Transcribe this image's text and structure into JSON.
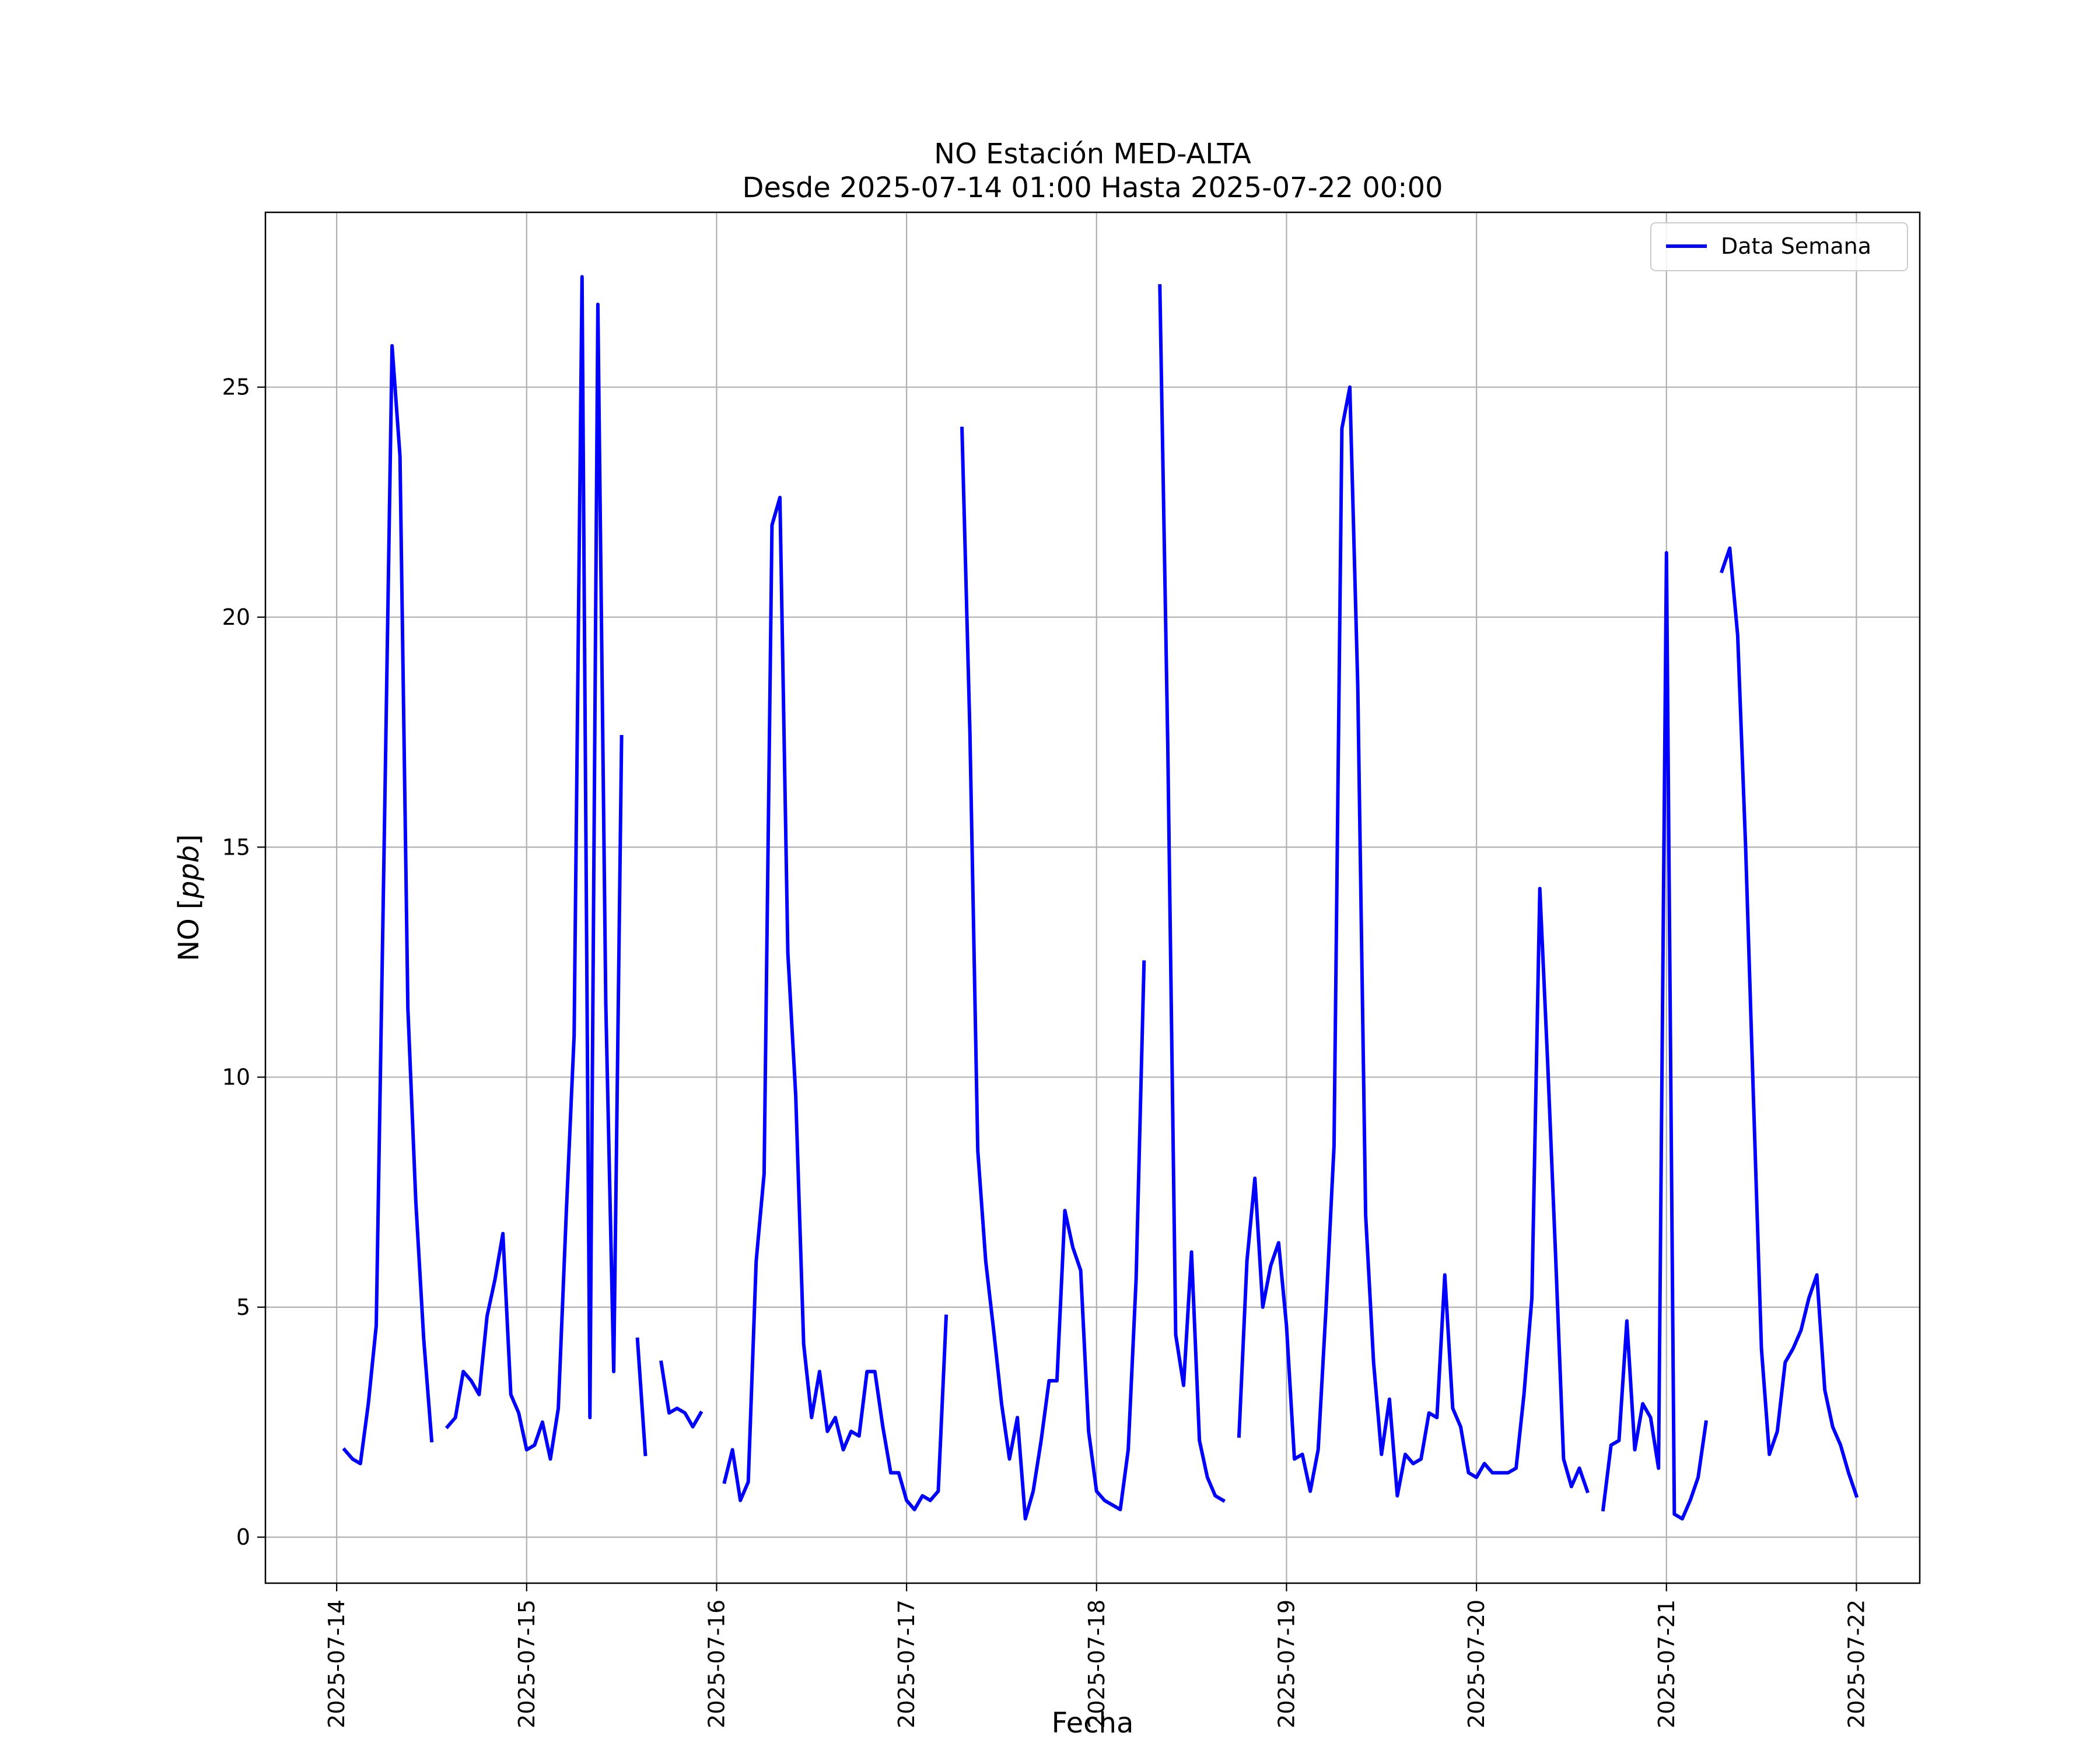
{
  "chart_data": {
    "type": "line",
    "title": "NO Estación MED-ALTA",
    "subtitle": "Desde 2025-07-14 01:00 Hasta 2025-07-22 00:00",
    "xlabel": "Fecha",
    "ylabel": "NO [ppb]",
    "ylabel_parts": {
      "prefix": "NO [",
      "unit": "ppb",
      "suffix": "]"
    },
    "xlim": [
      "2025-07-13 15:00",
      "2025-07-22 08:00"
    ],
    "ylim": [
      -1,
      28.8
    ],
    "x_ticks": [
      "2025-07-14",
      "2025-07-15",
      "2025-07-16",
      "2025-07-17",
      "2025-07-18",
      "2025-07-19",
      "2025-07-20",
      "2025-07-21",
      "2025-07-22"
    ],
    "y_ticks": [
      0,
      5,
      10,
      15,
      20,
      25
    ],
    "grid": true,
    "legend_position": "top-right",
    "series": [
      {
        "name": "Data Semana",
        "color": "#0000ff",
        "points": [
          [
            "2025-07-14 01:00",
            1.9
          ],
          [
            "2025-07-14 02:00",
            1.7
          ],
          [
            "2025-07-14 03:00",
            1.6
          ],
          [
            "2025-07-14 04:00",
            2.9
          ],
          [
            "2025-07-14 05:00",
            4.6
          ],
          [
            "2025-07-14 06:00",
            15
          ],
          [
            "2025-07-14 07:00",
            25.9
          ],
          [
            "2025-07-14 08:00",
            23.5
          ],
          [
            "2025-07-14 09:00",
            11.5
          ],
          [
            "2025-07-14 10:00",
            7.3
          ],
          [
            "2025-07-14 11:00",
            4.3
          ],
          [
            "2025-07-14 12:00",
            2.1
          ],
          [
            "2025-07-14 13:00",
            null
          ],
          [
            "2025-07-14 14:00",
            2.4
          ],
          [
            "2025-07-14 15:00",
            2.6
          ],
          [
            "2025-07-14 16:00",
            3.6
          ],
          [
            "2025-07-14 17:00",
            3.4
          ],
          [
            "2025-07-14 18:00",
            3.1
          ],
          [
            "2025-07-14 19:00",
            4.8
          ],
          [
            "2025-07-14 20:00",
            5.6
          ],
          [
            "2025-07-14 21:00",
            6.6
          ],
          [
            "2025-07-14 22:00",
            3.1
          ],
          [
            "2025-07-14 23:00",
            2.7
          ],
          [
            "2025-07-15 00:00",
            1.9
          ],
          [
            "2025-07-15 01:00",
            2
          ],
          [
            "2025-07-15 02:00",
            2.5
          ],
          [
            "2025-07-15 03:00",
            1.7
          ],
          [
            "2025-07-15 04:00",
            2.8
          ],
          [
            "2025-07-15 05:00",
            7
          ],
          [
            "2025-07-15 06:00",
            10.9
          ],
          [
            "2025-07-15 07:00",
            27.4
          ],
          [
            "2025-07-15 08:00",
            2.6
          ],
          [
            "2025-07-15 09:00",
            26.8
          ],
          [
            "2025-07-15 10:00",
            11.6
          ],
          [
            "2025-07-15 11:00",
            3.6
          ],
          [
            "2025-07-15 12:00",
            17.4
          ],
          [
            "2025-07-15 13:00",
            null
          ],
          [
            "2025-07-15 14:00",
            4.3
          ],
          [
            "2025-07-15 15:00",
            1.8
          ],
          [
            "2025-07-15 16:00",
            null
          ],
          [
            "2025-07-15 17:00",
            3.8
          ],
          [
            "2025-07-15 18:00",
            2.7
          ],
          [
            "2025-07-15 19:00",
            2.8
          ],
          [
            "2025-07-15 20:00",
            2.7
          ],
          [
            "2025-07-15 21:00",
            2.4
          ],
          [
            "2025-07-15 22:00",
            2.7
          ],
          [
            "2025-07-15 23:00",
            null
          ],
          [
            "2025-07-16 01:00",
            1.2
          ],
          [
            "2025-07-16 02:00",
            1.9
          ],
          [
            "2025-07-16 03:00",
            0.8
          ],
          [
            "2025-07-16 04:00",
            1.2
          ],
          [
            "2025-07-16 05:00",
            6
          ],
          [
            "2025-07-16 06:00",
            7.9
          ],
          [
            "2025-07-16 07:00",
            22
          ],
          [
            "2025-07-16 08:00",
            22.6
          ],
          [
            "2025-07-16 09:00",
            12.7
          ],
          [
            "2025-07-16 10:00",
            9.6
          ],
          [
            "2025-07-16 11:00",
            4.2
          ],
          [
            "2025-07-16 12:00",
            2.6
          ],
          [
            "2025-07-16 13:00",
            3.6
          ],
          [
            "2025-07-16 14:00",
            2.3
          ],
          [
            "2025-07-16 15:00",
            2.6
          ],
          [
            "2025-07-16 16:00",
            1.9
          ],
          [
            "2025-07-16 17:00",
            2.3
          ],
          [
            "2025-07-16 18:00",
            2.2
          ],
          [
            "2025-07-16 19:00",
            3.6
          ],
          [
            "2025-07-16 20:00",
            3.6
          ],
          [
            "2025-07-16 21:00",
            2.4
          ],
          [
            "2025-07-16 22:00",
            1.4
          ],
          [
            "2025-07-16 23:00",
            1.4
          ],
          [
            "2025-07-17 00:00",
            0.8
          ],
          [
            "2025-07-17 01:00",
            0.6
          ],
          [
            "2025-07-17 02:00",
            0.9
          ],
          [
            "2025-07-17 03:00",
            0.8
          ],
          [
            "2025-07-17 04:00",
            1
          ],
          [
            "2025-07-17 05:00",
            4.8
          ],
          [
            "2025-07-17 06:00",
            null
          ],
          [
            "2025-07-17 07:00",
            24.1
          ],
          [
            "2025-07-17 08:00",
            17.5
          ],
          [
            "2025-07-17 09:00",
            8.4
          ],
          [
            "2025-07-17 10:00",
            6
          ],
          [
            "2025-07-17 11:00",
            4.5
          ],
          [
            "2025-07-17 12:00",
            2.9
          ],
          [
            "2025-07-17 13:00",
            1.7
          ],
          [
            "2025-07-17 14:00",
            2.6
          ],
          [
            "2025-07-17 15:00",
            0.4
          ],
          [
            "2025-07-17 16:00",
            1
          ],
          [
            "2025-07-17 17:00",
            2.1
          ],
          [
            "2025-07-17 18:00",
            3.4
          ],
          [
            "2025-07-17 19:00",
            3.4
          ],
          [
            "2025-07-17 20:00",
            7.1
          ],
          [
            "2025-07-17 21:00",
            6.3
          ],
          [
            "2025-07-17 22:00",
            5.8
          ],
          [
            "2025-07-17 23:00",
            2.3
          ],
          [
            "2025-07-18 00:00",
            1
          ],
          [
            "2025-07-18 01:00",
            0.8
          ],
          [
            "2025-07-18 02:00",
            0.7
          ],
          [
            "2025-07-18 03:00",
            0.6
          ],
          [
            "2025-07-18 04:00",
            1.9
          ],
          [
            "2025-07-18 05:00",
            5.6
          ],
          [
            "2025-07-18 06:00",
            12.5
          ],
          [
            "2025-07-18 07:00",
            null
          ],
          [
            "2025-07-18 08:00",
            27.2
          ],
          [
            "2025-07-18 09:00",
            17.2
          ],
          [
            "2025-07-18 10:00",
            4.4
          ],
          [
            "2025-07-18 11:00",
            3.3
          ],
          [
            "2025-07-18 12:00",
            6.2
          ],
          [
            "2025-07-18 13:00",
            2.1
          ],
          [
            "2025-07-18 14:00",
            1.3
          ],
          [
            "2025-07-18 15:00",
            0.9
          ],
          [
            "2025-07-18 16:00",
            0.8
          ],
          [
            "2025-07-18 17:00",
            null
          ],
          [
            "2025-07-18 18:00",
            2.2
          ],
          [
            "2025-07-18 19:00",
            6
          ],
          [
            "2025-07-18 20:00",
            7.8
          ],
          [
            "2025-07-18 21:00",
            5
          ],
          [
            "2025-07-18 22:00",
            5.9
          ],
          [
            "2025-07-18 23:00",
            6.4
          ],
          [
            "2025-07-19 00:00",
            4.6
          ],
          [
            "2025-07-19 01:00",
            1.7
          ],
          [
            "2025-07-19 02:00",
            1.8
          ],
          [
            "2025-07-19 03:00",
            1
          ],
          [
            "2025-07-19 04:00",
            1.9
          ],
          [
            "2025-07-19 05:00",
            5
          ],
          [
            "2025-07-19 06:00",
            8.5
          ],
          [
            "2025-07-19 07:00",
            24.1
          ],
          [
            "2025-07-19 08:00",
            25
          ],
          [
            "2025-07-19 09:00",
            18.5
          ],
          [
            "2025-07-19 10:00",
            7
          ],
          [
            "2025-07-19 11:00",
            3.8
          ],
          [
            "2025-07-19 12:00",
            1.8
          ],
          [
            "2025-07-19 13:00",
            3
          ],
          [
            "2025-07-19 14:00",
            0.9
          ],
          [
            "2025-07-19 15:00",
            1.8
          ],
          [
            "2025-07-19 16:00",
            1.6
          ],
          [
            "2025-07-19 17:00",
            1.7
          ],
          [
            "2025-07-19 18:00",
            2.7
          ],
          [
            "2025-07-19 19:00",
            2.6
          ],
          [
            "2025-07-19 20:00",
            5.7
          ],
          [
            "2025-07-19 21:00",
            2.8
          ],
          [
            "2025-07-19 22:00",
            2.4
          ],
          [
            "2025-07-19 23:00",
            1.4
          ],
          [
            "2025-07-20 00:00",
            1.3
          ],
          [
            "2025-07-20 01:00",
            1.6
          ],
          [
            "2025-07-20 02:00",
            1.4
          ],
          [
            "2025-07-20 03:00",
            1.4
          ],
          [
            "2025-07-20 04:00",
            1.4
          ],
          [
            "2025-07-20 05:00",
            1.5
          ],
          [
            "2025-07-20 06:00",
            3.1
          ],
          [
            "2025-07-20 07:00",
            5.2
          ],
          [
            "2025-07-20 08:00",
            14.1
          ],
          [
            "2025-07-20 09:00",
            10.3
          ],
          [
            "2025-07-20 10:00",
            6.1
          ],
          [
            "2025-07-20 11:00",
            1.7
          ],
          [
            "2025-07-20 12:00",
            1.1
          ],
          [
            "2025-07-20 13:00",
            1.5
          ],
          [
            "2025-07-20 14:00",
            1
          ],
          [
            "2025-07-20 15:00",
            null
          ],
          [
            "2025-07-20 16:00",
            0.6
          ],
          [
            "2025-07-20 17:00",
            2
          ],
          [
            "2025-07-20 18:00",
            2.1
          ],
          [
            "2025-07-20 19:00",
            4.7
          ],
          [
            "2025-07-20 20:00",
            1.9
          ],
          [
            "2025-07-20 21:00",
            2.9
          ],
          [
            "2025-07-20 22:00",
            2.6
          ],
          [
            "2025-07-20 23:00",
            1.5
          ],
          [
            "2025-07-21 00:00",
            21.4
          ],
          [
            "2025-07-21 01:00",
            0.5
          ],
          [
            "2025-07-21 02:00",
            0.4
          ],
          [
            "2025-07-21 03:00",
            0.8
          ],
          [
            "2025-07-21 04:00",
            1.3
          ],
          [
            "2025-07-21 05:00",
            2.5
          ],
          [
            "2025-07-21 06:00",
            null
          ],
          [
            "2025-07-21 07:00",
            21
          ],
          [
            "2025-07-21 08:00",
            21.5
          ],
          [
            "2025-07-21 09:00",
            19.6
          ],
          [
            "2025-07-21 10:00",
            15
          ],
          [
            "2025-07-21 11:00",
            9.5
          ],
          [
            "2025-07-21 12:00",
            4.1
          ],
          [
            "2025-07-21 13:00",
            1.8
          ],
          [
            "2025-07-21 14:00",
            2.3
          ],
          [
            "2025-07-21 15:00",
            3.8
          ],
          [
            "2025-07-21 16:00",
            4.1
          ],
          [
            "2025-07-21 17:00",
            4.5
          ],
          [
            "2025-07-21 18:00",
            5.2
          ],
          [
            "2025-07-21 19:00",
            5.7
          ],
          [
            "2025-07-21 20:00",
            3.2
          ],
          [
            "2025-07-21 21:00",
            2.4
          ],
          [
            "2025-07-21 22:00",
            2
          ],
          [
            "2025-07-21 23:00",
            1.4
          ],
          [
            "2025-07-22 00:00",
            0.9
          ]
        ]
      }
    ]
  }
}
